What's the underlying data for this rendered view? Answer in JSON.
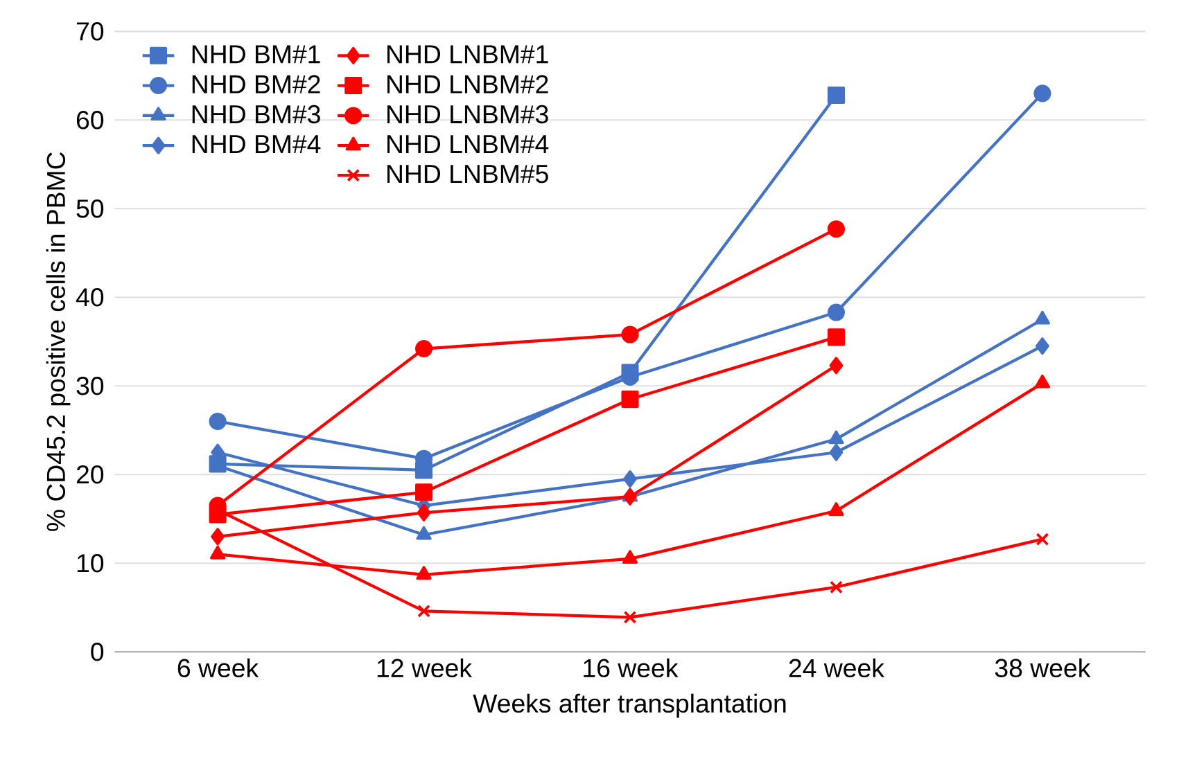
{
  "chart_data": {
    "type": "line",
    "xlabel": "Weeks after transplantation",
    "ylabel": "% CD45.2 positive cells in PBMC",
    "categories": [
      "6 week",
      "12 week",
      "16 week",
      "24 week",
      "38 week"
    ],
    "ylim": [
      0,
      70
    ],
    "yticks": [
      0,
      10,
      20,
      30,
      40,
      50,
      60,
      70
    ],
    "grid": "y",
    "legend": "top left",
    "line_style": "solid",
    "series": [
      {
        "name": "NHD BM#1",
        "color": "#4472c4",
        "marker": "square",
        "values": [
          21.2,
          20.5,
          31.5,
          62.8,
          null
        ]
      },
      {
        "name": "NHD BM#2",
        "color": "#4472c4",
        "marker": "circle",
        "values": [
          26.0,
          21.8,
          31.0,
          38.3,
          63.0
        ]
      },
      {
        "name": "NHD BM#3",
        "color": "#4472c4",
        "marker": "triangle",
        "values": [
          21.0,
          13.2,
          17.5,
          24.0,
          37.5
        ]
      },
      {
        "name": "NHD BM#4",
        "color": "#4472c4",
        "marker": "diamond",
        "values": [
          22.5,
          16.5,
          19.5,
          22.5,
          34.5
        ]
      },
      {
        "name": "NHD LNBM#1",
        "color": "#ff0000",
        "marker": "diamond",
        "values": [
          13.0,
          15.7,
          17.5,
          32.3,
          null
        ]
      },
      {
        "name": "NHD LNBM#2",
        "color": "#ff0000",
        "marker": "square",
        "values": [
          15.5,
          18.0,
          28.5,
          35.5,
          null
        ]
      },
      {
        "name": "NHD LNBM#3",
        "color": "#ff0000",
        "marker": "circle",
        "values": [
          16.5,
          34.2,
          35.8,
          47.7,
          null
        ]
      },
      {
        "name": "NHD LNBM#4",
        "color": "#ff0000",
        "marker": "triangle",
        "values": [
          11.0,
          8.7,
          10.5,
          15.9,
          30.3
        ]
      },
      {
        "name": "NHD LNBM#5",
        "color": "#ff0000",
        "marker": "cross",
        "values": [
          16.0,
          4.6,
          3.9,
          7.3,
          12.7
        ]
      }
    ]
  }
}
